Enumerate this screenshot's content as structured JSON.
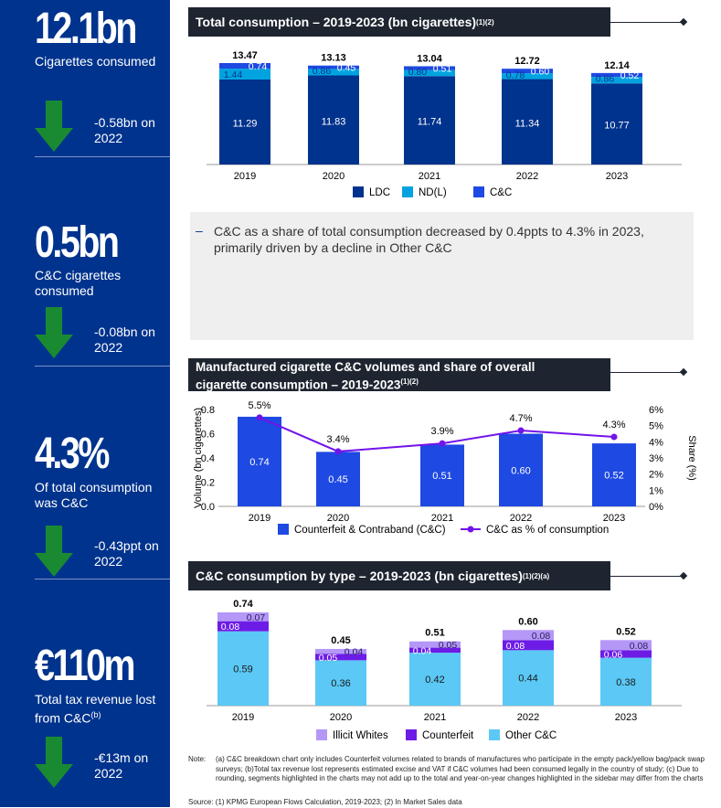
{
  "sidebar": {
    "stats": [
      {
        "big": "12.1bn",
        "desc": "Cigarettes consumed",
        "sup": "",
        "change": "-0.58bn on 2022"
      },
      {
        "big": "0.5bn",
        "desc": "C&C cigarettes consumed",
        "sup": "",
        "change": "-0.08bn on 2022"
      },
      {
        "big": "4.3%",
        "desc": "Of total consumption was C&C",
        "sup": "",
        "change": "-0.43ppt on 2022"
      },
      {
        "big": "€110m",
        "desc": "Total tax revenue lost from C&C",
        "sup": "(b)",
        "change": "-€13m on 2022"
      }
    ],
    "colors": {
      "background": "#00338d",
      "arrow": "#1a8a32"
    }
  },
  "commentary": {
    "dash": "–",
    "text": "C&C as a share of total consumption decreased by 0.4ppts to 4.3% in 2023, primarily driven by a decline in Other C&C"
  },
  "notes": {
    "label": "Note:",
    "text": "(a) C&C breakdown chart only includes Counterfeit volumes related to brands of manufactures who participate in the empty pack/yellow bag/pack swap surveys; (b)Total tax revenue lost represents estimated excise and VAT if C&C volumes had been consumed legally in the country of study; (c) Due to rounding, segments highlighted in the charts may not add up to the total and year-on-year changes highlighted in the sidebar may differ from the charts",
    "source": "Source: (1) KPMG European Flows Calculation, 2019-2023; (2) In Market Sales data"
  },
  "chart_data": [
    {
      "type": "bar",
      "stacked": true,
      "title": "Total consumption – 2019-2023 (bn cigarettes)",
      "title_sup": "(1)(2)",
      "categories": [
        "2019",
        "2020",
        "2021",
        "2022",
        "2023"
      ],
      "series": [
        {
          "name": "LDC",
          "color": "#00338d",
          "values": [
            11.29,
            11.83,
            11.74,
            11.34,
            10.77
          ],
          "labels": [
            "11.29",
            "11.83",
            "11.74",
            "11.34",
            "10.77"
          ]
        },
        {
          "name": "ND(L)",
          "color": "#00a3e0",
          "values": [
            1.44,
            0.86,
            0.8,
            0.78,
            0.86
          ],
          "labels": [
            "1.44",
            "0.86",
            "0.80",
            "0.78",
            "0.86"
          ]
        },
        {
          "name": "C&C",
          "color": "#1e49e2",
          "values": [
            0.74,
            0.45,
            0.51,
            0.6,
            0.52
          ],
          "labels": [
            "0.74",
            "0.45",
            "0.51",
            "0.60",
            "0.52"
          ]
        }
      ],
      "totals": [
        "13.47",
        "13.13",
        "13.04",
        "12.72",
        "12.14"
      ],
      "legend_position": "bottom"
    },
    {
      "type": "bar+line",
      "title_lines": [
        "Manufactured cigarette C&C volumes and share of overall",
        "cigarette consumption – 2019-2023"
      ],
      "title_sup": "(1)(2)",
      "categories": [
        "2019",
        "2020",
        "2021",
        "2022",
        "2023"
      ],
      "bars": {
        "name": "Counterfeit & Contraband (C&C)",
        "color": "#1e49e2",
        "values": [
          0.74,
          0.45,
          0.51,
          0.6,
          0.52
        ],
        "labels": [
          "0.74",
          "0.45",
          "0.51",
          "0.60",
          "0.52"
        ]
      },
      "line": {
        "name": "C&C as % of consumption",
        "color": "#7213ea",
        "values": [
          5.5,
          3.4,
          3.9,
          4.7,
          4.3
        ],
        "labels": [
          "5.5%",
          "3.4%",
          "3.9%",
          "4.7%",
          "4.3%"
        ]
      },
      "ylabel_left": "Volume (bn cigarettes)",
      "ylabel_right": "Share (%)",
      "ylim_left": [
        0,
        0.8
      ],
      "yticks_left": [
        "0.0",
        "0.2",
        "0.4",
        "0.6",
        "0.8"
      ],
      "ylim_right": [
        0,
        6
      ],
      "yticks_right": [
        "0%",
        "1%",
        "2%",
        "3%",
        "4%",
        "5%",
        "6%"
      ],
      "legend_position": "bottom"
    },
    {
      "type": "bar",
      "stacked": true,
      "title": "C&C consumption by type – 2019-2023 (bn cigarettes)",
      "title_sup": "(1)(2)(a)",
      "categories": [
        "2019",
        "2020",
        "2021",
        "2022",
        "2023"
      ],
      "series": [
        {
          "name": "Other C&C",
          "color": "#5bc8f5",
          "values": [
            0.59,
            0.36,
            0.42,
            0.44,
            0.38
          ],
          "labels": [
            "0.59",
            "0.36",
            "0.42",
            "0.44",
            "0.38"
          ]
        },
        {
          "name": "Counterfeit",
          "color": "#6d1ce6",
          "values": [
            0.08,
            0.05,
            0.04,
            0.08,
            0.06
          ],
          "labels": [
            "0.08",
            "0.05",
            "0.04",
            "0.08",
            "0.06"
          ]
        },
        {
          "name": "Illicit Whites",
          "color": "#b497f7",
          "values": [
            0.07,
            0.04,
            0.05,
            0.08,
            0.08
          ],
          "labels": [
            "0.07",
            "0.04",
            "0.05",
            "0.08",
            "0.08"
          ]
        }
      ],
      "totals": [
        "0.74",
        "0.45",
        "0.51",
        "0.60",
        "0.52"
      ],
      "legend_order": [
        "Illicit Whites",
        "Counterfeit",
        "Other C&C"
      ],
      "legend_position": "bottom"
    }
  ]
}
